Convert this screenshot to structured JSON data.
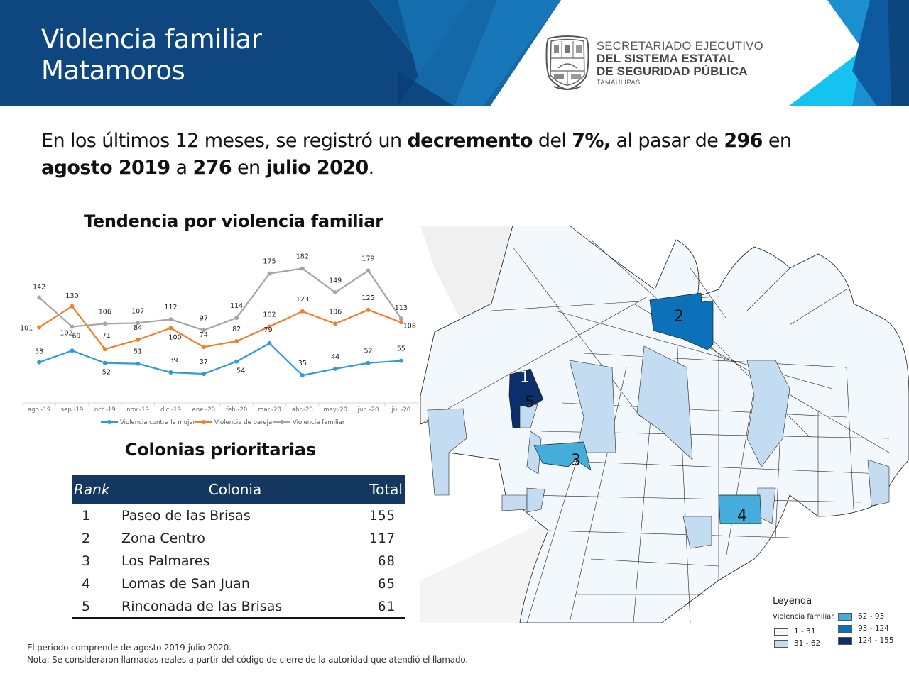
{
  "header": {
    "title_line1": "Violencia familiar",
    "title_line2": "Matamoros",
    "org": {
      "line1": "SECRETARIADO EJECUTIVO",
      "line2": "DEL SISTEMA ESTATAL",
      "line3": "DE SEGURIDAD PÚBLICA",
      "line4": "TAMAULIPAS"
    },
    "logo_icon": "tamaulipas-coat-of-arms-icon"
  },
  "summary": {
    "part1": "En los últimos 12 meses, se registró un ",
    "bold1": "decremento",
    "part2": " del ",
    "bold2": "7%,",
    "part3": " al pasar de ",
    "bold3": "296",
    "part4": " en ",
    "bold4": "agosto 2019",
    "part5": " a ",
    "bold5": "276",
    "part6": " en ",
    "bold6": "julio 2020",
    "part7": "."
  },
  "chart_data": {
    "type": "line",
    "title": "Tendencia por violencia familiar",
    "xlabel": "",
    "ylabel": "",
    "categories": [
      "ago.-19",
      "sep.-19",
      "oct.-19",
      "nov.-19",
      "dic.-19",
      "ene.-20",
      "feb.-20",
      "mar.-20",
      "abr.-20",
      "may.-20",
      "jun.-20",
      "jul.-20"
    ],
    "series": [
      {
        "name": "Violencia contra la mujer",
        "color": "#2e9bd6",
        "values": [
          53,
          69,
          52,
          51,
          39,
          37,
          54,
          79,
          35,
          44,
          52,
          55
        ]
      },
      {
        "name": "Violencia de pareja",
        "color": "#f07f2a",
        "values": [
          101,
          130,
          71,
          84,
          100,
          74,
          82,
          102,
          123,
          106,
          125,
          108
        ]
      },
      {
        "name": "Violencia familiar",
        "color": "#a5a5a5",
        "values": [
          142,
          102,
          106,
          107,
          112,
          97,
          114,
          175,
          182,
          149,
          179,
          113
        ]
      }
    ],
    "ylim": [
      0,
      200
    ],
    "grid": false,
    "data_labels": true,
    "legend_position": "bottom"
  },
  "table": {
    "title": "Colonias prioritarias",
    "headers": {
      "rank": "Rank",
      "colonia": "Colonia",
      "total": "Total"
    },
    "rows": [
      {
        "rank": "1",
        "colonia": "Paseo de las Brisas",
        "total": "155"
      },
      {
        "rank": "2",
        "colonia": "Zona Centro",
        "total": "117"
      },
      {
        "rank": "3",
        "colonia": "Los Palmares",
        "total": "68"
      },
      {
        "rank": "4",
        "colonia": "Lomas de San Juan",
        "total": "65"
      },
      {
        "rank": "5",
        "colonia": "Rinconada de las Brisas",
        "total": "61"
      }
    ],
    "header_color": "#14375f"
  },
  "map": {
    "labels": [
      "1",
      "2",
      "3",
      "4",
      "5"
    ],
    "legend": {
      "title": "Leyenda",
      "subtitle": "Violencia familiar",
      "classes": [
        {
          "range": "1 - 31",
          "color": "#f3f8fd"
        },
        {
          "range": "31 - 62",
          "color": "#c3dcf1"
        },
        {
          "range": "62 - 93",
          "color": "#44addb"
        },
        {
          "range": "93 - 124",
          "color": "#0c71b8"
        },
        {
          "range": "124 - 155",
          "color": "#0a2f6b"
        }
      ]
    }
  },
  "footnote": {
    "line1": "El periodo comprende de agosto 2019-julio 2020.",
    "line2": "Nota: Se consideraron llamadas reales a partir del código de cierre de la autoridad que atendió el llamado."
  },
  "colors": {
    "banner_dark": "#0f4a80",
    "banner_mid": "#1569a8",
    "banner_light": "#15c3f0"
  }
}
